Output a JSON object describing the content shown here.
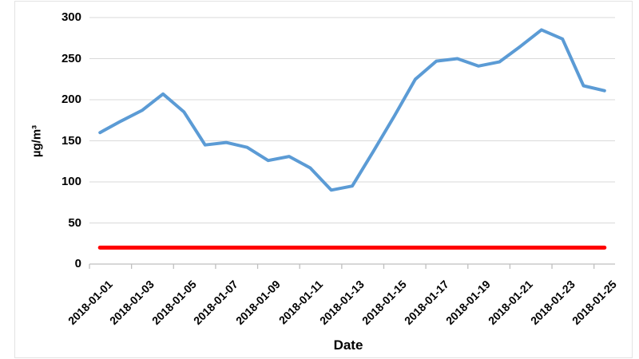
{
  "chart_data": {
    "type": "line",
    "title": "",
    "xlabel": "Date",
    "ylabel": "µg/m³",
    "ylim": [
      0,
      300
    ],
    "y_ticks": [
      0,
      50,
      100,
      150,
      200,
      250,
      300
    ],
    "grid": "horizontal gridlines every 50, light grey",
    "legend": "none",
    "x": [
      "2018-01-01",
      "2018-01-02",
      "2018-01-03",
      "2018-01-04",
      "2018-01-05",
      "2018-01-06",
      "2018-01-07",
      "2018-01-08",
      "2018-01-09",
      "2018-01-10",
      "2018-01-11",
      "2018-01-12",
      "2018-01-13",
      "2018-01-14",
      "2018-01-15",
      "2018-01-16",
      "2018-01-17",
      "2018-01-18",
      "2018-01-19",
      "2018-01-20",
      "2018-01-21",
      "2018-01-22",
      "2018-01-23",
      "2018-01-24",
      "2018-01-25"
    ],
    "x_tick_labels": [
      "2018-01-01",
      "2018-01-03",
      "2018-01-05",
      "2018-01-07",
      "2018-01-09",
      "2018-01-11",
      "2018-01-13",
      "2018-01-15",
      "2018-01-17",
      "2018-01-19",
      "2018-01-21",
      "2018-01-23",
      "2018-01-25"
    ],
    "series": [
      {
        "name": "concentration-line-blue",
        "color": "#5B9BD5",
        "stroke_width": 4,
        "values": [
          160,
          174,
          187,
          207,
          185,
          145,
          148,
          142,
          126,
          131,
          117,
          90,
          95,
          137,
          180,
          225,
          247,
          250,
          241,
          246,
          265,
          285,
          274,
          217,
          211
        ]
      },
      {
        "name": "reference-line-red",
        "color": "#FF0000",
        "stroke_width": 5,
        "values": [
          20,
          20,
          20,
          20,
          20,
          20,
          20,
          20,
          20,
          20,
          20,
          20,
          20,
          20,
          20,
          20,
          20,
          20,
          20,
          20,
          20,
          20,
          20,
          20,
          20
        ]
      }
    ],
    "axis_color": "#BFBFBF",
    "gridline_color": "#D9D9D9"
  }
}
